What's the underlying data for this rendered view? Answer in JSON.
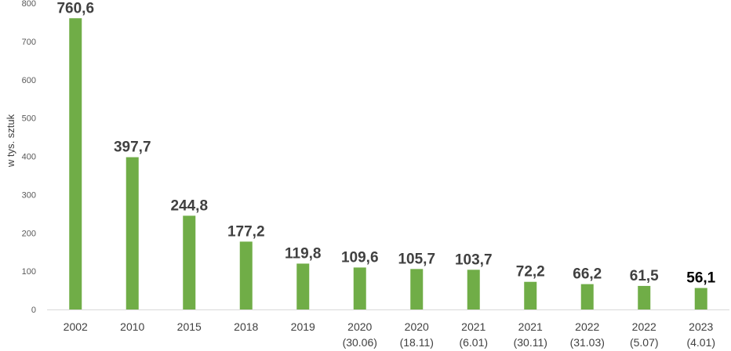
{
  "chart_data": {
    "type": "bar",
    "ylabel": "w tys. sztuk",
    "ylim": [
      0,
      800
    ],
    "yticks": [
      0,
      100,
      200,
      300,
      400,
      500,
      600,
      700,
      800
    ],
    "grid": false,
    "bar_color": "#70ad47",
    "categories": [
      {
        "line1": "2002",
        "line2": ""
      },
      {
        "line1": "2010",
        "line2": ""
      },
      {
        "line1": "2015",
        "line2": ""
      },
      {
        "line1": "2018",
        "line2": ""
      },
      {
        "line1": "2019",
        "line2": ""
      },
      {
        "line1": "2020",
        "line2": "(30.06)"
      },
      {
        "line1": "2020",
        "line2": "(18.11)"
      },
      {
        "line1": "2021",
        "line2": "(6.01)"
      },
      {
        "line1": "2021",
        "line2": "(30.11)"
      },
      {
        "line1": "2022",
        "line2": "(31.03)"
      },
      {
        "line1": "2022",
        "line2": "(5.07)"
      },
      {
        "line1": "2023",
        "line2": "(4.01)"
      }
    ],
    "values": [
      760.6,
      397.7,
      244.8,
      177.2,
      119.8,
      109.6,
      105.7,
      103.7,
      72.2,
      66.2,
      61.5,
      56.1
    ],
    "value_labels": [
      "760,6",
      "397,7",
      "244,8",
      "177,2",
      "119,8",
      "109,6",
      "105,7",
      "103,7",
      "72,2",
      "66,2",
      "61,5",
      "56,1"
    ]
  }
}
